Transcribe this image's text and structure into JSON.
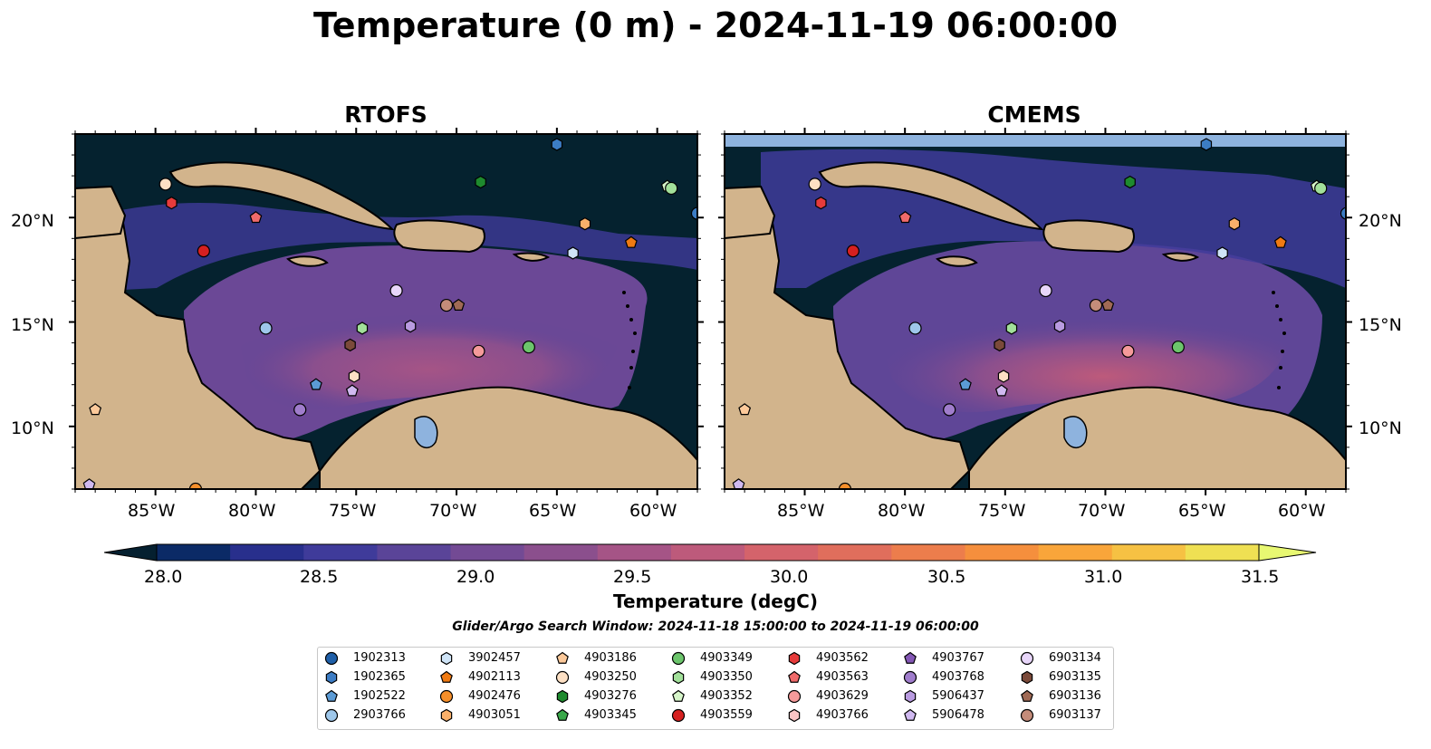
{
  "title": "Temperature (0 m) - 2024-11-19 06:00:00",
  "panels": [
    {
      "title": "RTOFS"
    },
    {
      "title": "CMEMS"
    }
  ],
  "lon_ticks": [
    "85°W",
    "80°W",
    "75°W",
    "70°W",
    "65°W",
    "60°W"
  ],
  "lat_ticks": [
    "20°N",
    "15°N",
    "10°N"
  ],
  "colorbar": {
    "title": "Temperature (degC)",
    "ticks": [
      "28.0",
      "28.5",
      "29.0",
      "29.5",
      "30.0",
      "30.5",
      "31.0",
      "31.5"
    ],
    "colors": [
      "#052030",
      "#0b2a66",
      "#282f8c",
      "#3f3b9a",
      "#5a4498",
      "#734a94",
      "#8b4f8d",
      "#a55486",
      "#bd5a7b",
      "#d4636b",
      "#e06e5c",
      "#ec7d4c",
      "#f58f3d",
      "#f9a53a",
      "#f6c143",
      "#efe053",
      "#e8f872"
    ]
  },
  "search_window": "Glider/Argo Search Window: 2024-11-18 15:00:00 to 2024-11-19 06:00:00",
  "colors": {
    "land": "#d2b48c",
    "lake": "#8eb3de",
    "deep_water": "#05222f"
  },
  "legend": [
    {
      "id": "1902313",
      "shape": "circle",
      "color": "#1f5fa8"
    },
    {
      "id": "1902365",
      "shape": "hexagon",
      "color": "#3c7cc4"
    },
    {
      "id": "1902522",
      "shape": "pentagon",
      "color": "#5b9bd5"
    },
    {
      "id": "2903766",
      "shape": "circle",
      "color": "#9ec7ea"
    },
    {
      "id": "3902457",
      "shape": "hexagon",
      "color": "#cfe4f7"
    },
    {
      "id": "4902113",
      "shape": "pentagon",
      "color": "#f07a12"
    },
    {
      "id": "4902476",
      "shape": "circle",
      "color": "#f68f2a"
    },
    {
      "id": "4903051",
      "shape": "hexagon",
      "color": "#fab06a"
    },
    {
      "id": "4903186",
      "shape": "pentagon",
      "color": "#fcc99a"
    },
    {
      "id": "4903250",
      "shape": "circle",
      "color": "#fde0c4"
    },
    {
      "id": "4903276",
      "shape": "hexagon",
      "color": "#1e8a2e"
    },
    {
      "id": "4903345",
      "shape": "pentagon",
      "color": "#3aa84a"
    },
    {
      "id": "4903349",
      "shape": "circle",
      "color": "#6cc56c"
    },
    {
      "id": "4903350",
      "shape": "hexagon",
      "color": "#a2e09a"
    },
    {
      "id": "4903352",
      "shape": "pentagon",
      "color": "#d6f5c9"
    },
    {
      "id": "4903559",
      "shape": "circle",
      "color": "#d62020"
    },
    {
      "id": "4903562",
      "shape": "hexagon",
      "color": "#e63b3b"
    },
    {
      "id": "4903563",
      "shape": "pentagon",
      "color": "#f06a6a"
    },
    {
      "id": "4903629",
      "shape": "circle",
      "color": "#f59a9a"
    },
    {
      "id": "4903766",
      "shape": "hexagon",
      "color": "#fbc5c5"
    },
    {
      "id": "4903767",
      "shape": "pentagon",
      "color": "#8457b5"
    },
    {
      "id": "4903768",
      "shape": "circle",
      "color": "#a07dcc"
    },
    {
      "id": "5906437",
      "shape": "hexagon",
      "color": "#b99be0"
    },
    {
      "id": "5906478",
      "shape": "pentagon",
      "color": "#d0b9f0"
    },
    {
      "id": "6903134",
      "shape": "circle",
      "color": "#e8d6fa"
    },
    {
      "id": "6903135",
      "shape": "hexagon",
      "color": "#7b4a3a"
    },
    {
      "id": "6903136",
      "shape": "pentagon",
      "color": "#a06a55"
    },
    {
      "id": "6903137",
      "shape": "circle",
      "color": "#c48c7a"
    }
  ],
  "observations": [
    {
      "lon": -65.0,
      "lat": 23.5,
      "shape": "hexagon",
      "color": "#3c7cc4"
    },
    {
      "lon": -58.0,
      "lat": 20.2,
      "shape": "circle",
      "color": "#3c7cc4"
    },
    {
      "lon": -77.0,
      "lat": 12.0,
      "shape": "pentagon",
      "color": "#5b9bd5"
    },
    {
      "lon": -79.5,
      "lat": 14.7,
      "shape": "circle",
      "color": "#9ec7ea"
    },
    {
      "lon": -64.2,
      "lat": 18.3,
      "shape": "hexagon",
      "color": "#cfe4f7"
    },
    {
      "lon": -61.3,
      "lat": 18.8,
      "shape": "pentagon",
      "color": "#f07a12"
    },
    {
      "lon": -83.0,
      "lat": 7.0,
      "shape": "circle",
      "color": "#f68f2a"
    },
    {
      "lon": -63.6,
      "lat": 19.7,
      "shape": "hexagon",
      "color": "#fab06a"
    },
    {
      "lon": -88.0,
      "lat": 10.8,
      "shape": "pentagon",
      "color": "#fcc99a"
    },
    {
      "lon": -84.5,
      "lat": 21.6,
      "shape": "circle",
      "color": "#fde0c4"
    },
    {
      "lon": -75.1,
      "lat": 12.4,
      "shape": "hexagon",
      "color": "#fde0c4"
    },
    {
      "lon": -68.8,
      "lat": 21.7,
      "shape": "hexagon",
      "color": "#1e8a2e"
    },
    {
      "lon": -66.4,
      "lat": 13.8,
      "shape": "circle",
      "color": "#6cc56c"
    },
    {
      "lon": -74.7,
      "lat": 14.7,
      "shape": "hexagon",
      "color": "#a2e09a"
    },
    {
      "lon": -59.5,
      "lat": 21.5,
      "shape": "pentagon",
      "color": "#d6f5c9"
    },
    {
      "lon": -59.3,
      "lat": 21.4,
      "shape": "circle",
      "color": "#a2e09a"
    },
    {
      "lon": -82.6,
      "lat": 18.4,
      "shape": "circle",
      "color": "#d62020"
    },
    {
      "lon": -84.2,
      "lat": 20.7,
      "shape": "hexagon",
      "color": "#e63b3b"
    },
    {
      "lon": -80.0,
      "lat": 20.0,
      "shape": "pentagon",
      "color": "#f06a6a"
    },
    {
      "lon": -68.9,
      "lat": 13.6,
      "shape": "circle",
      "color": "#f59a9a"
    },
    {
      "lon": -72.3,
      "lat": 14.8,
      "shape": "hexagon",
      "color": "#b99be0"
    },
    {
      "lon": -75.2,
      "lat": 11.7,
      "shape": "pentagon",
      "color": "#d0b9f0"
    },
    {
      "lon": -88.3,
      "lat": 7.2,
      "shape": "pentagon",
      "color": "#d0b9f0"
    },
    {
      "lon": -77.8,
      "lat": 10.8,
      "shape": "circle",
      "color": "#a07dcc"
    },
    {
      "lon": -73.0,
      "lat": 16.5,
      "shape": "circle",
      "color": "#e8d6fa"
    },
    {
      "lon": -75.3,
      "lat": 13.9,
      "shape": "hexagon",
      "color": "#7b4a3a"
    },
    {
      "lon": -69.9,
      "lat": 15.8,
      "shape": "pentagon",
      "color": "#a06a55"
    },
    {
      "lon": -70.5,
      "lat": 15.8,
      "shape": "circle",
      "color": "#c48c7a"
    }
  ]
}
